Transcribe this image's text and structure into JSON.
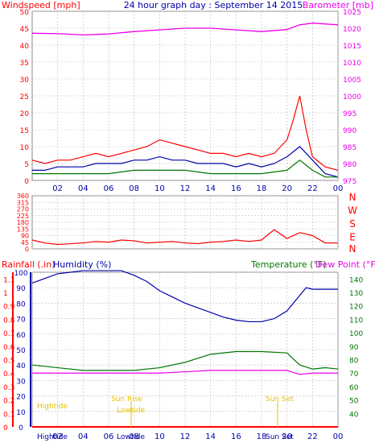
{
  "chart_data": [
    {
      "type": "line",
      "title": "24 hour graph day : September 14 2015",
      "left_axis_label": "Windspeed [mph]",
      "right_axis_label": "Barometer [mb]",
      "x_ticks": [
        "02",
        "04",
        "06",
        "08",
        "10",
        "12",
        "14",
        "16",
        "18",
        "20",
        "22",
        "00"
      ],
      "y_left_ticks": [
        0,
        5,
        10,
        15,
        20,
        25,
        30,
        35,
        40,
        45,
        50
      ],
      "y_left_range": [
        0,
        50
      ],
      "y_right_ticks": [
        975,
        980,
        985,
        990,
        995,
        1000,
        1005,
        1010,
        1015,
        1020,
        1025
      ],
      "y_right_range": [
        975,
        1025
      ],
      "grid": true,
      "series": [
        {
          "x": [
            0,
            2,
            4,
            6,
            8,
            10,
            12,
            14,
            16,
            18,
            20,
            21,
            22,
            24
          ],
          "values": [
            1018.5,
            1018.4,
            1018.0,
            1018.3,
            1019.0,
            1019.5,
            1020.0,
            1020.0,
            1019.5,
            1019.0,
            1019.6,
            1021.0,
            1021.5,
            1021.0
          ]
        },
        {
          "x": [
            0,
            1,
            2,
            3,
            4,
            5,
            6,
            7,
            8,
            9,
            10,
            11,
            12,
            13,
            14,
            15,
            16,
            17,
            18,
            19,
            20,
            20.5,
            21,
            21.5,
            22,
            23,
            24
          ],
          "values": [
            6,
            5,
            6,
            6,
            7,
            8,
            7,
            8,
            9,
            10,
            12,
            11,
            10,
            9,
            8,
            8,
            7,
            8,
            7,
            8,
            12,
            18,
            25,
            15,
            7,
            4,
            3
          ]
        },
        {
          "x": [
            0,
            1,
            2,
            3,
            4,
            5,
            6,
            7,
            8,
            9,
            10,
            11,
            12,
            13,
            14,
            15,
            16,
            17,
            18,
            19,
            20,
            21,
            22,
            23,
            24
          ],
          "values": [
            3,
            3,
            4,
            4,
            4,
            5,
            5,
            5,
            6,
            6,
            7,
            6,
            6,
            5,
            5,
            5,
            4,
            5,
            4,
            5,
            7,
            10,
            6,
            2,
            1
          ]
        },
        {
          "x": [
            0,
            2,
            4,
            6,
            8,
            10,
            12,
            14,
            16,
            18,
            20,
            21,
            22,
            23,
            24
          ],
          "values": [
            2,
            2,
            2,
            2,
            3,
            3,
            3,
            2,
            2,
            2,
            3,
            6,
            3,
            1,
            1
          ]
        }
      ]
    },
    {
      "type": "scatter",
      "right_axis_label": "N W S E N",
      "y_ticks": [
        0,
        45,
        90,
        135,
        180,
        225,
        270,
        315,
        360
      ],
      "y_range": [
        0,
        360
      ],
      "x_ticks": [
        "02",
        "04",
        "06",
        "08",
        "10",
        "12",
        "14",
        "16",
        "18",
        "20",
        "22",
        "00"
      ],
      "grid": true,
      "series": [
        {
          "x": [
            0,
            1,
            2,
            3,
            4,
            5,
            6,
            7,
            8,
            9,
            10,
            11,
            12,
            13,
            14,
            15,
            16,
            17,
            18,
            19,
            20,
            21,
            22,
            23,
            24
          ],
          "values": [
            60,
            40,
            30,
            35,
            40,
            50,
            45,
            60,
            55,
            40,
            45,
            50,
            40,
            35,
            45,
            50,
            60,
            50,
            60,
            130,
            70,
            110,
            90,
            40,
            40
          ]
        }
      ]
    },
    {
      "type": "line",
      "left_axis_label_1": "Rainfall (.in)",
      "left_axis_label_2": "Humidity (%)",
      "right_axis_label_1": "Temperature (°F)",
      "right_axis_label_2": "Dew Point (°F)",
      "y_rain_ticks": [
        "0",
        "0.1",
        "0.2",
        "0.3",
        "0.4",
        "0.5",
        "0.6",
        "0.7",
        "0.8",
        "0.9",
        "1",
        "1.1"
      ],
      "y_humidity_ticks": [
        0,
        10,
        20,
        30,
        40,
        50,
        60,
        70,
        80,
        90,
        100
      ],
      "y_temp_ticks": [
        40,
        50,
        60,
        70,
        80,
        90,
        100,
        110,
        120,
        130,
        140
      ],
      "y_temp_range": [
        30,
        145
      ],
      "x_ticks": [
        "02",
        "04",
        "06",
        "08",
        "10",
        "12",
        "14",
        "16",
        "18",
        "20",
        "22",
        "00"
      ],
      "grid": true,
      "annotations": {
        "highlow_top": "Hightide",
        "sunrise": "Sun Rise",
        "lowtide": "Lowtide",
        "sunset": "Sun Set",
        "bottom_hightide": "Hightide",
        "bottom_lowtide": "Lowtide",
        "bottom_sunset": "Sun Set"
      },
      "series": [
        {
          "x": [
            0,
            1,
            2,
            3,
            4,
            5,
            6,
            7,
            8,
            9,
            10,
            11,
            12,
            13,
            14,
            15,
            16,
            17,
            18,
            19,
            20,
            21,
            21.5,
            22,
            23,
            24
          ],
          "values": [
            93,
            96,
            99,
            100,
            101,
            101,
            101,
            101,
            98,
            94,
            88,
            84,
            80,
            77,
            74,
            71,
            69,
            68,
            68,
            70,
            75,
            85,
            90,
            89,
            89,
            89
          ]
        },
        {
          "x": [
            0,
            2,
            4,
            6,
            8,
            10,
            12,
            14,
            16,
            18,
            20,
            21,
            22,
            23,
            24
          ],
          "values": [
            76,
            74,
            72,
            72,
            72,
            74,
            78,
            84,
            86,
            86,
            85,
            76,
            73,
            74,
            73
          ]
        },
        {
          "x": [
            0,
            2,
            4,
            6,
            8,
            10,
            12,
            14,
            16,
            18,
            20,
            21,
            22,
            23,
            24
          ],
          "values": [
            70,
            70,
            70,
            70,
            70,
            70,
            71,
            72,
            72,
            72,
            72,
            69,
            70,
            70,
            70
          ]
        },
        {
          "x": [
            0,
            24
          ],
          "values": [
            0,
            0
          ]
        }
      ]
    }
  ],
  "colors": {
    "wind": "#ff0000",
    "gust": "#0000aa",
    "avg": "#007700",
    "baro": "#ee00ee",
    "dir": "#ff0000",
    "humidity": "#0000aa",
    "temp": "#007700",
    "dew": "#ee00ee",
    "rain": "#ff0000",
    "annot": "#e6c000",
    "grid": "#bbbbbb"
  }
}
